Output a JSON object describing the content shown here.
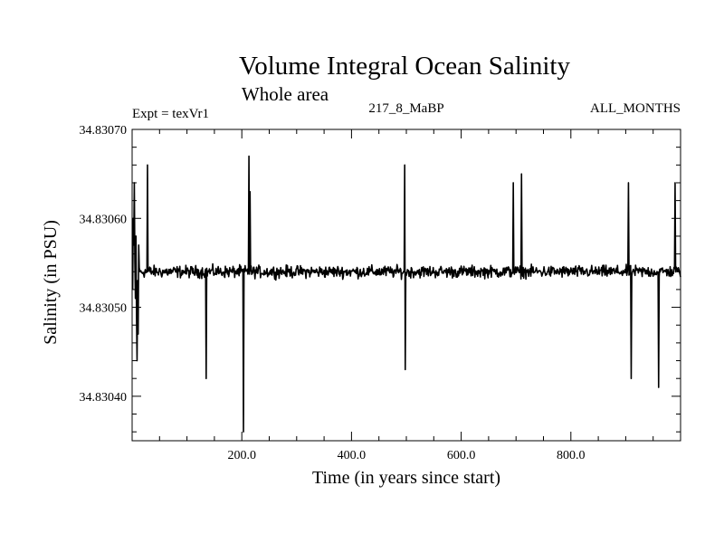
{
  "chart_data": {
    "type": "line",
    "title": "Volume Integral Ocean Salinity",
    "subtitle": "Whole area",
    "annotations": {
      "left": "Expt = texVr1",
      "center": "217_8_MaBP",
      "right": "ALL_MONTHS"
    },
    "xlabel": "Time (in years since start)",
    "ylabel": "Salinity (in PSU)",
    "xlim": [
      0,
      1000
    ],
    "ylim": [
      34.83035,
      34.8307
    ],
    "x_ticks": [
      200,
      400,
      600,
      800
    ],
    "x_tick_labels": [
      "200.0",
      "400.0",
      "600.0",
      "800.0"
    ],
    "y_ticks": [
      34.8304,
      34.8305,
      34.8306,
      34.8307
    ],
    "y_tick_labels": [
      "34.83040",
      "34.83050",
      "34.83060",
      "34.83070"
    ],
    "series": [
      {
        "name": "Salinity",
        "color": "#000000",
        "x_start": 1,
        "x_step": 1,
        "base": 34.83054,
        "noise_amplitude": 4.5e-06,
        "n_points": 1000,
        "values_start": [
          34.83052,
          34.8306,
          34.83057,
          34.83064,
          34.83055,
          34.83051,
          34.83058,
          34.83049,
          34.83044,
          34.83053,
          34.83047,
          34.83057
        ],
        "extremes": [
          {
            "x": 28,
            "y": 34.83066
          },
          {
            "x": 135,
            "y": 34.83042
          },
          {
            "x": 203,
            "y": 34.83036
          },
          {
            "x": 213,
            "y": 34.83067
          },
          {
            "x": 215,
            "y": 34.83063
          },
          {
            "x": 497,
            "y": 34.83066
          },
          {
            "x": 498,
            "y": 34.83043
          },
          {
            "x": 695,
            "y": 34.83064
          },
          {
            "x": 710,
            "y": 34.83065
          },
          {
            "x": 905,
            "y": 34.83064
          },
          {
            "x": 910,
            "y": 34.83042
          },
          {
            "x": 960,
            "y": 34.83041
          },
          {
            "x": 990,
            "y": 34.83064
          }
        ]
      }
    ]
  }
}
